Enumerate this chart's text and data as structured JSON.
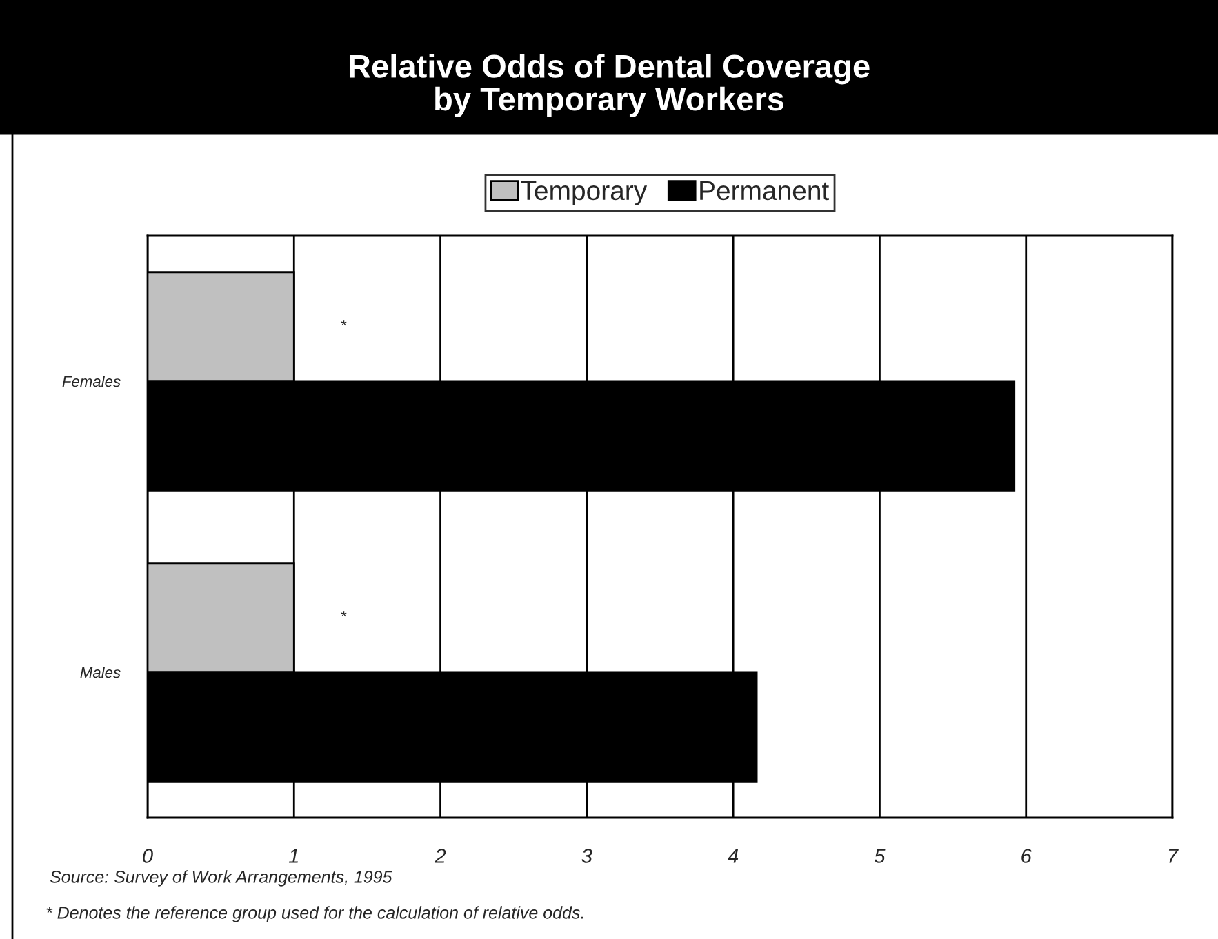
{
  "chart_data": {
    "type": "bar",
    "orientation": "horizontal",
    "title": "Relative Odds of Dental Coverage\nby Temporary Workers",
    "categories": [
      "Females",
      "Males"
    ],
    "series": [
      {
        "name": "Temporary",
        "color": "#c0c0c0",
        "values": [
          1,
          1
        ]
      },
      {
        "name": "Permanent",
        "color": "#000000",
        "values": [
          5.92,
          4.16
        ]
      }
    ],
    "xlim": [
      0,
      7
    ],
    "xticks": [
      0,
      1,
      2,
      3,
      4,
      5,
      6,
      7
    ],
    "grid": "x",
    "legend": "top",
    "annotations": [
      "*",
      "*",
      "Source: Survey of Work Arrangements, 1995",
      "* Denotes the reference group used for the calculation of relative odds."
    ]
  }
}
